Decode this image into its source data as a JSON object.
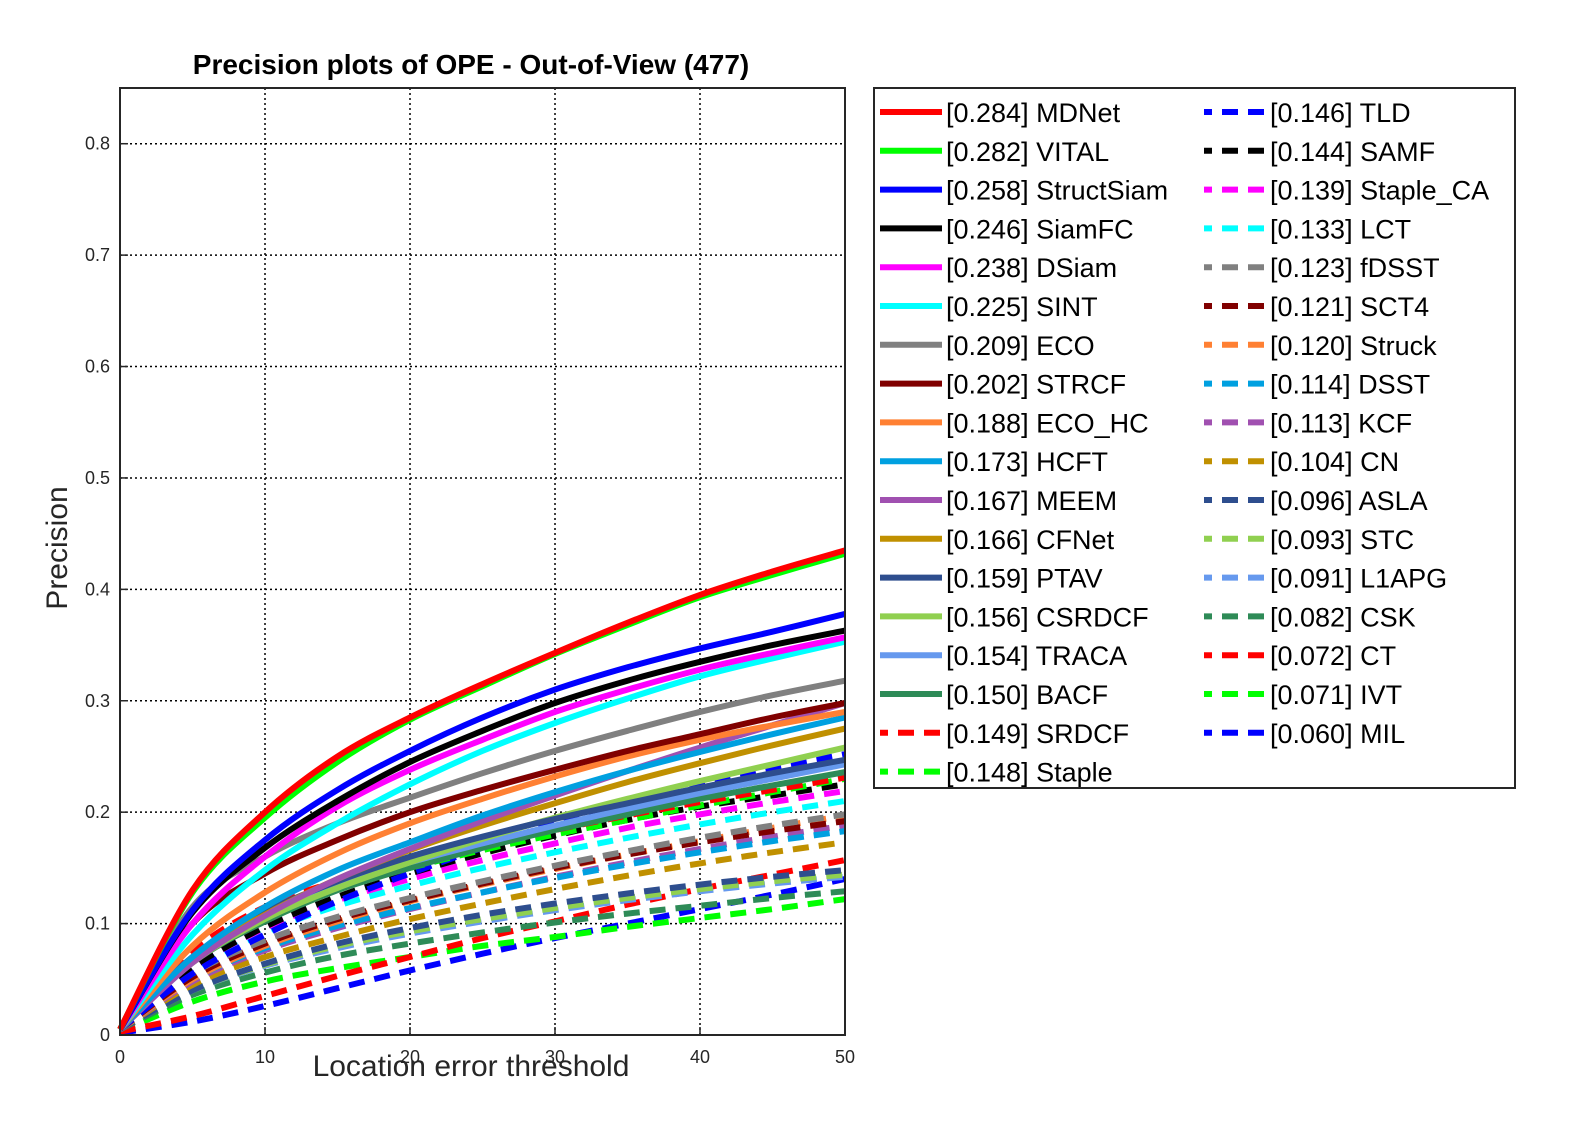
{
  "chart_data": {
    "type": "line",
    "title": "Precision plots of OPE - Out-of-View (477)",
    "xlabel": "Location error threshold",
    "ylabel": "Precision",
    "xlim": [
      0,
      50
    ],
    "ylim": [
      0,
      0.85
    ],
    "x_ticks": [
      "0",
      "10",
      "20",
      "30",
      "40",
      "50"
    ],
    "y_ticks": [
      "0",
      "0.1",
      "0.2",
      "0.3",
      "0.4",
      "0.5",
      "0.6",
      "0.7",
      "0.8"
    ],
    "grid": true,
    "legend_position": "outside-right",
    "series": [
      {
        "name": "MDNet",
        "label": "[0.284] MDNet",
        "color": "#ff0000",
        "style": "solid",
        "values": [
          0.005,
          0.13,
          0.2,
          0.25,
          0.285,
          0.315,
          0.343,
          0.37,
          0.395,
          0.416,
          0.435
        ]
      },
      {
        "name": "VITAL",
        "label": "[0.282] VITAL",
        "color": "#00ff00",
        "style": "solid",
        "values": [
          0.005,
          0.128,
          0.195,
          0.245,
          0.283,
          0.313,
          0.342,
          0.368,
          0.393,
          0.413,
          0.432
        ]
      },
      {
        "name": "StructSiam",
        "label": "[0.258] StructSiam",
        "color": "#0000ff",
        "style": "solid",
        "values": [
          0.005,
          0.112,
          0.175,
          0.22,
          0.255,
          0.285,
          0.31,
          0.33,
          0.347,
          0.362,
          0.378
        ]
      },
      {
        "name": "SiamFC",
        "label": "[0.246] SiamFC",
        "color": "#000000",
        "style": "solid",
        "values": [
          0.005,
          0.11,
          0.168,
          0.21,
          0.245,
          0.273,
          0.298,
          0.318,
          0.335,
          0.35,
          0.363
        ]
      },
      {
        "name": "DSiam",
        "label": "[0.238] DSiam",
        "color": "#ff00ff",
        "style": "solid",
        "values": [
          0.005,
          0.1,
          0.16,
          0.205,
          0.238,
          0.265,
          0.29,
          0.31,
          0.328,
          0.343,
          0.357
        ]
      },
      {
        "name": "SINT",
        "label": "[0.225] SINT",
        "color": "#00ffff",
        "style": "solid",
        "values": [
          0.005,
          0.09,
          0.148,
          0.19,
          0.225,
          0.255,
          0.28,
          0.302,
          0.322,
          0.338,
          0.353
        ]
      },
      {
        "name": "ECO",
        "label": "[0.209] ECO",
        "color": "#808080",
        "style": "solid",
        "values": [
          0.005,
          0.115,
          0.16,
          0.19,
          0.213,
          0.235,
          0.255,
          0.273,
          0.29,
          0.305,
          0.318
        ]
      },
      {
        "name": "STRCF",
        "label": "[0.202] STRCF",
        "color": "#800000",
        "style": "solid",
        "values": [
          0.005,
          0.1,
          0.145,
          0.175,
          0.2,
          0.22,
          0.238,
          0.255,
          0.27,
          0.285,
          0.298
        ]
      },
      {
        "name": "ECO_HC",
        "label": "[0.188] ECO_HC",
        "color": "#ff8033",
        "style": "solid",
        "values": [
          0.005,
          0.08,
          0.128,
          0.163,
          0.19,
          0.212,
          0.232,
          0.25,
          0.265,
          0.278,
          0.29
        ]
      },
      {
        "name": "HCFT",
        "label": "[0.173] HCFT",
        "color": "#00a0e0",
        "style": "solid",
        "values": [
          0.005,
          0.07,
          0.115,
          0.148,
          0.173,
          0.197,
          0.218,
          0.237,
          0.254,
          0.27,
          0.285
        ]
      },
      {
        "name": "MEEM",
        "label": "[0.167] MEEM",
        "color": "#a050b0",
        "style": "solid",
        "values": [
          0.005,
          0.065,
          0.107,
          0.14,
          0.167,
          0.192,
          0.215,
          0.237,
          0.258,
          0.278,
          0.298
        ]
      },
      {
        "name": "CFNet",
        "label": "[0.166] CFNet",
        "color": "#c09000",
        "style": "solid",
        "values": [
          0.005,
          0.068,
          0.108,
          0.14,
          0.166,
          0.188,
          0.208,
          0.227,
          0.244,
          0.26,
          0.275
        ]
      },
      {
        "name": "PTAV",
        "label": "[0.159] PTAV",
        "color": "#2e4e8e",
        "style": "solid",
        "values": [
          0.005,
          0.07,
          0.11,
          0.138,
          0.16,
          0.178,
          0.194,
          0.208,
          0.222,
          0.235,
          0.247
        ]
      },
      {
        "name": "CSRDCF",
        "label": "[0.156] CSRDCF",
        "color": "#90d050",
        "style": "solid",
        "values": [
          0.005,
          0.065,
          0.104,
          0.132,
          0.155,
          0.176,
          0.195,
          0.212,
          0.228,
          0.243,
          0.258
        ]
      },
      {
        "name": "TRACA",
        "label": "[0.154] TRACA",
        "color": "#6699ee",
        "style": "solid",
        "values": [
          0.005,
          0.07,
          0.108,
          0.135,
          0.155,
          0.172,
          0.188,
          0.203,
          0.217,
          0.23,
          0.243
        ]
      },
      {
        "name": "BACF",
        "label": "[0.150] BACF",
        "color": "#2e8b57",
        "style": "solid",
        "values": [
          0.005,
          0.065,
          0.102,
          0.13,
          0.15,
          0.168,
          0.184,
          0.198,
          0.212,
          0.224,
          0.236
        ]
      },
      {
        "name": "SRDCF",
        "label": "[0.149] SRDCF",
        "color": "#ff0000",
        "style": "dashed",
        "values": [
          0.005,
          0.075,
          0.115,
          0.138,
          0.155,
          0.17,
          0.184,
          0.197,
          0.209,
          0.22,
          0.231
        ]
      },
      {
        "name": "Staple",
        "label": "[0.148] Staple",
        "color": "#00ff00",
        "style": "dashed",
        "values": [
          0.005,
          0.07,
          0.108,
          0.133,
          0.15,
          0.166,
          0.18,
          0.193,
          0.206,
          0.218,
          0.23
        ]
      },
      {
        "name": "TLD",
        "label": "[0.146] TLD",
        "color": "#0000ff",
        "style": "dashed",
        "values": [
          0.005,
          0.055,
          0.09,
          0.12,
          0.145,
          0.168,
          0.19,
          0.208,
          0.225,
          0.24,
          0.252
        ]
      },
      {
        "name": "SAMF",
        "label": "[0.144] SAMF",
        "color": "#000000",
        "style": "dashed",
        "values": [
          0.005,
          0.06,
          0.097,
          0.124,
          0.145,
          0.163,
          0.179,
          0.193,
          0.205,
          0.215,
          0.225
        ]
      },
      {
        "name": "Staple_CA",
        "label": "[0.139] Staple_CA",
        "color": "#ff00ff",
        "style": "dashed",
        "values": [
          0.005,
          0.06,
          0.096,
          0.121,
          0.14,
          0.157,
          0.172,
          0.186,
          0.198,
          0.209,
          0.219
        ]
      },
      {
        "name": "LCT",
        "label": "[0.133] LCT",
        "color": "#00ffff",
        "style": "dashed",
        "values": [
          0.005,
          0.058,
          0.092,
          0.116,
          0.134,
          0.15,
          0.164,
          0.177,
          0.189,
          0.2,
          0.21
        ]
      },
      {
        "name": "fDSST",
        "label": "[0.123] fDSST",
        "color": "#808080",
        "style": "dashed",
        "values": [
          0.005,
          0.055,
          0.085,
          0.106,
          0.123,
          0.138,
          0.152,
          0.165,
          0.177,
          0.188,
          0.198
        ]
      },
      {
        "name": "SCT4",
        "label": "[0.121] SCT4",
        "color": "#800000",
        "style": "dashed",
        "values": [
          0.005,
          0.052,
          0.082,
          0.104,
          0.121,
          0.136,
          0.15,
          0.162,
          0.173,
          0.183,
          0.192
        ]
      },
      {
        "name": "Struck",
        "label": "[0.120] Struck",
        "color": "#ff8033",
        "style": "dashed",
        "values": [
          0.005,
          0.05,
          0.08,
          0.102,
          0.12,
          0.135,
          0.149,
          0.162,
          0.174,
          0.186,
          0.197
        ]
      },
      {
        "name": "DSST",
        "label": "[0.114] DSST",
        "color": "#00a0e0",
        "style": "dashed",
        "values": [
          0.005,
          0.05,
          0.078,
          0.098,
          0.114,
          0.128,
          0.141,
          0.153,
          0.164,
          0.174,
          0.183
        ]
      },
      {
        "name": "KCF",
        "label": "[0.113] KCF",
        "color": "#a050b0",
        "style": "dashed",
        "values": [
          0.005,
          0.048,
          0.076,
          0.096,
          0.113,
          0.128,
          0.142,
          0.155,
          0.167,
          0.178,
          0.188
        ]
      },
      {
        "name": "CN",
        "label": "[0.104] CN",
        "color": "#c09000",
        "style": "dashed",
        "values": [
          0.005,
          0.045,
          0.07,
          0.088,
          0.104,
          0.118,
          0.131,
          0.143,
          0.154,
          0.164,
          0.173
        ]
      },
      {
        "name": "ASLA",
        "label": "[0.096] ASLA",
        "color": "#2e4e8e",
        "style": "dashed",
        "values": [
          0.005,
          0.04,
          0.064,
          0.082,
          0.096,
          0.108,
          0.118,
          0.127,
          0.135,
          0.142,
          0.148
        ]
      },
      {
        "name": "STC",
        "label": "[0.093] STC",
        "color": "#90d050",
        "style": "dashed",
        "values": [
          0.005,
          0.04,
          0.063,
          0.08,
          0.093,
          0.104,
          0.114,
          0.123,
          0.131,
          0.138,
          0.144
        ]
      },
      {
        "name": "L1APG",
        "label": "[0.091] L1APG",
        "color": "#6699ee",
        "style": "dashed",
        "values": [
          0.005,
          0.04,
          0.062,
          0.078,
          0.091,
          0.102,
          0.112,
          0.121,
          0.129,
          0.136,
          0.142
        ]
      },
      {
        "name": "CSK",
        "label": "[0.082] CSK",
        "color": "#2e8b57",
        "style": "dashed",
        "values": [
          0.005,
          0.036,
          0.056,
          0.071,
          0.082,
          0.092,
          0.101,
          0.109,
          0.116,
          0.123,
          0.129
        ]
      },
      {
        "name": "CT",
        "label": "[0.072] CT",
        "color": "#ff0000",
        "style": "dashed",
        "values": [
          0.003,
          0.017,
          0.035,
          0.053,
          0.07,
          0.087,
          0.102,
          0.117,
          0.131,
          0.144,
          0.157
        ]
      },
      {
        "name": "IVT",
        "label": "[0.071] IVT",
        "color": "#00ff00",
        "style": "dashed",
        "values": [
          0.003,
          0.03,
          0.048,
          0.06,
          0.07,
          0.08,
          0.088,
          0.097,
          0.105,
          0.113,
          0.122
        ]
      },
      {
        "name": "MIL",
        "label": "[0.060] MIL",
        "color": "#0000ff",
        "style": "dashed",
        "values": [
          0.002,
          0.012,
          0.026,
          0.042,
          0.058,
          0.073,
          0.087,
          0.1,
          0.113,
          0.126,
          0.14
        ]
      }
    ],
    "x": [
      0,
      5,
      10,
      15,
      20,
      25,
      30,
      35,
      40,
      45,
      50
    ]
  }
}
